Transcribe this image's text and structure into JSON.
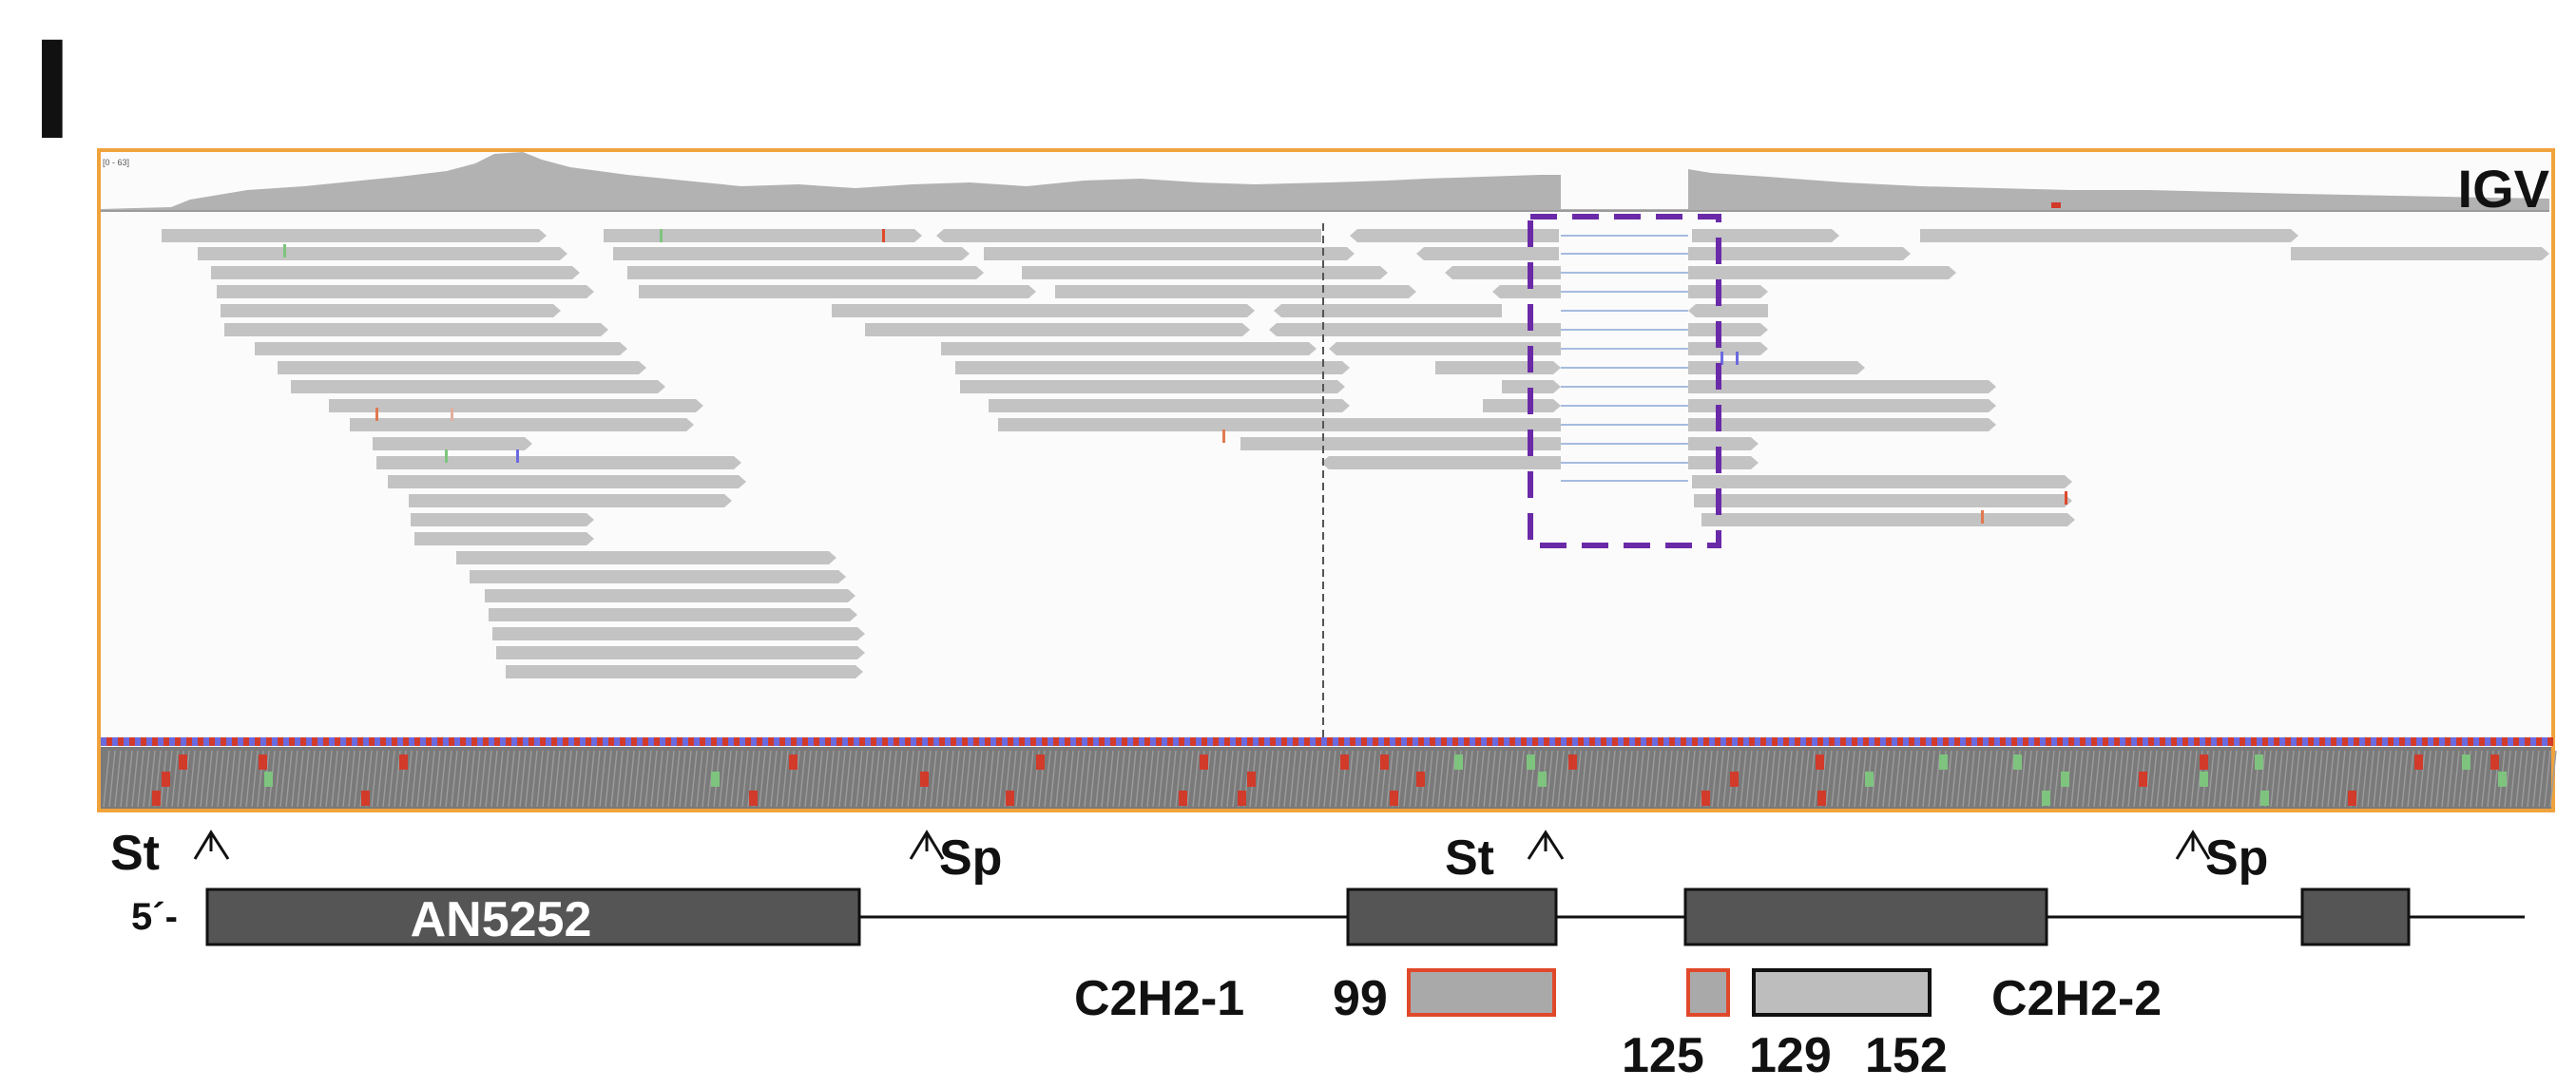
{
  "panel_label": "I",
  "igv": {
    "label": "IGV",
    "scale_text": "[0 - 63]"
  },
  "gene": {
    "name": "AN5252",
    "five_prime": "5´-"
  },
  "markers": [
    {
      "id": "st1",
      "text": "St"
    },
    {
      "id": "sp1",
      "text": "Sp"
    },
    {
      "id": "st2",
      "text": "St"
    },
    {
      "id": "sp2",
      "text": "Sp"
    }
  ],
  "domains": {
    "c2h2_1": {
      "label": "C2H2-1",
      "start": "99"
    },
    "c2h2_2": {
      "label": "C2H2-2",
      "start_exon": "125",
      "start": "129",
      "end": "152"
    }
  },
  "colors": {
    "frame": "#f0a33c",
    "read": "#c3c3c3",
    "coverage": "#b2b2b2",
    "box": "#6a2aa8",
    "exon": "#555555",
    "domain_outline": "#e0482a"
  }
}
